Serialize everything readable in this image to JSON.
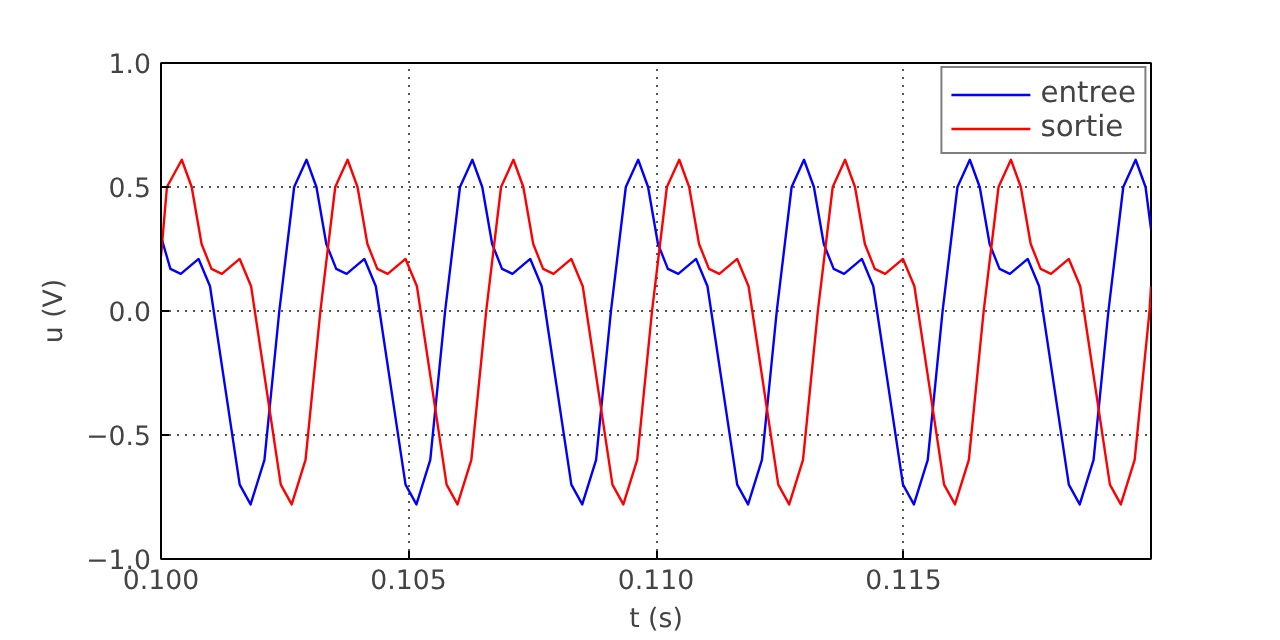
{
  "chart_data": {
    "type": "line",
    "xlabel": "t (s)",
    "ylabel": "u (V)",
    "xlim": [
      0.1,
      0.12
    ],
    "ylim": [
      -1.0,
      1.0
    ],
    "xticks": [
      {
        "value": 0.1,
        "label": "0.100"
      },
      {
        "value": 0.105,
        "label": "0.105"
      },
      {
        "value": 0.11,
        "label": "0.110"
      },
      {
        "value": 0.115,
        "label": "0.115"
      }
    ],
    "yticks": [
      {
        "value": -1.0,
        "label": "−1.0"
      },
      {
        "value": -0.5,
        "label": "−0.5"
      },
      {
        "value": 0.0,
        "label": "0.0"
      },
      {
        "value": 0.5,
        "label": "0.5"
      },
      {
        "value": 1.0,
        "label": "1.0"
      }
    ],
    "grid": true,
    "legend": "top right",
    "marker": "none",
    "line_style": "solid",
    "series": [
      {
        "name": "entree",
        "color": "#0000ff",
        "x": [
          0.1,
          0.10019,
          0.1004,
          0.10076,
          0.10099,
          0.10129,
          0.10159,
          0.10181,
          0.10209,
          0.10239,
          0.10269,
          0.10294,
          0.10314,
          0.10334,
          0.10354,
          0.10375,
          0.10411,
          0.10434,
          0.10464,
          0.10494,
          0.10516,
          0.10544,
          0.10574,
          0.10604,
          0.10629,
          0.10649,
          0.10669,
          0.10689,
          0.1071,
          0.10746,
          0.10769,
          0.10799,
          0.10829,
          0.10851,
          0.10879,
          0.10909,
          0.10939,
          0.10964,
          0.10984,
          0.11004,
          0.11024,
          0.11045,
          0.11081,
          0.11104,
          0.11134,
          0.11164,
          0.11186,
          0.11214,
          0.11244,
          0.11274,
          0.11299,
          0.11319,
          0.11339,
          0.11359,
          0.1138,
          0.11416,
          0.11439,
          0.11469,
          0.11499,
          0.11521,
          0.11549,
          0.11579,
          0.11609,
          0.11634,
          0.11654,
          0.11674,
          0.11694,
          0.11715,
          0.11751,
          0.11774,
          0.11804,
          0.11834,
          0.11856,
          0.11884,
          0.11914,
          0.11944,
          0.11969,
          0.11989,
          0.12
        ],
        "values": [
          0.3,
          0.17,
          0.15,
          0.21,
          0.1,
          -0.3,
          -0.7,
          -0.78,
          -0.6,
          0.0,
          0.5,
          0.61,
          0.5,
          0.27,
          0.17,
          0.15,
          0.21,
          0.1,
          -0.3,
          -0.7,
          -0.78,
          -0.6,
          0.0,
          0.5,
          0.61,
          0.5,
          0.27,
          0.17,
          0.15,
          0.21,
          0.1,
          -0.3,
          -0.7,
          -0.78,
          -0.6,
          0.0,
          0.5,
          0.61,
          0.5,
          0.27,
          0.17,
          0.15,
          0.21,
          0.1,
          -0.3,
          -0.7,
          -0.78,
          -0.6,
          0.0,
          0.5,
          0.61,
          0.5,
          0.27,
          0.17,
          0.15,
          0.21,
          0.1,
          -0.3,
          -0.7,
          -0.78,
          -0.6,
          0.0,
          0.5,
          0.61,
          0.5,
          0.27,
          0.17,
          0.15,
          0.21,
          0.1,
          -0.3,
          -0.7,
          -0.78,
          -0.6,
          0.0,
          0.5,
          0.61,
          0.5,
          0.33
        ]
      },
      {
        "name": "sortie",
        "color": "#ff0000",
        "x": [
          0.1,
          0.10012,
          0.10042,
          0.10062,
          0.10082,
          0.10102,
          0.10123,
          0.10159,
          0.10182,
          0.10212,
          0.10242,
          0.10264,
          0.10292,
          0.10322,
          0.10352,
          0.10377,
          0.10397,
          0.10417,
          0.10437,
          0.10458,
          0.10494,
          0.10517,
          0.10547,
          0.10577,
          0.10599,
          0.10627,
          0.10657,
          0.10687,
          0.10712,
          0.10732,
          0.10752,
          0.10772,
          0.10793,
          0.10829,
          0.10852,
          0.10882,
          0.10912,
          0.10934,
          0.10962,
          0.10992,
          0.11022,
          0.11047,
          0.11067,
          0.11087,
          0.11107,
          0.11128,
          0.11164,
          0.11187,
          0.11217,
          0.11247,
          0.11269,
          0.11297,
          0.11327,
          0.11357,
          0.11382,
          0.11402,
          0.11422,
          0.11442,
          0.11463,
          0.11499,
          0.11522,
          0.11552,
          0.11582,
          0.11604,
          0.11632,
          0.11662,
          0.11692,
          0.11717,
          0.11737,
          0.11757,
          0.11777,
          0.11798,
          0.11834,
          0.11857,
          0.11887,
          0.11917,
          0.11939,
          0.11967,
          0.11997,
          0.12
        ],
        "values": [
          0.22,
          0.5,
          0.61,
          0.5,
          0.27,
          0.17,
          0.15,
          0.21,
          0.1,
          -0.3,
          -0.7,
          -0.78,
          -0.6,
          0.0,
          0.5,
          0.61,
          0.5,
          0.27,
          0.17,
          0.15,
          0.21,
          0.1,
          -0.3,
          -0.7,
          -0.78,
          -0.6,
          0.0,
          0.5,
          0.61,
          0.5,
          0.27,
          0.17,
          0.15,
          0.21,
          0.1,
          -0.3,
          -0.7,
          -0.78,
          -0.6,
          0.0,
          0.5,
          0.61,
          0.5,
          0.27,
          0.17,
          0.15,
          0.21,
          0.1,
          -0.3,
          -0.7,
          -0.78,
          -0.6,
          0.0,
          0.5,
          0.61,
          0.5,
          0.27,
          0.17,
          0.15,
          0.21,
          0.1,
          -0.3,
          -0.7,
          -0.78,
          -0.6,
          0.0,
          0.5,
          0.61,
          0.5,
          0.27,
          0.17,
          0.15,
          0.21,
          0.1,
          -0.3,
          -0.7,
          -0.78,
          -0.6,
          0.0,
          0.1
        ]
      }
    ]
  }
}
